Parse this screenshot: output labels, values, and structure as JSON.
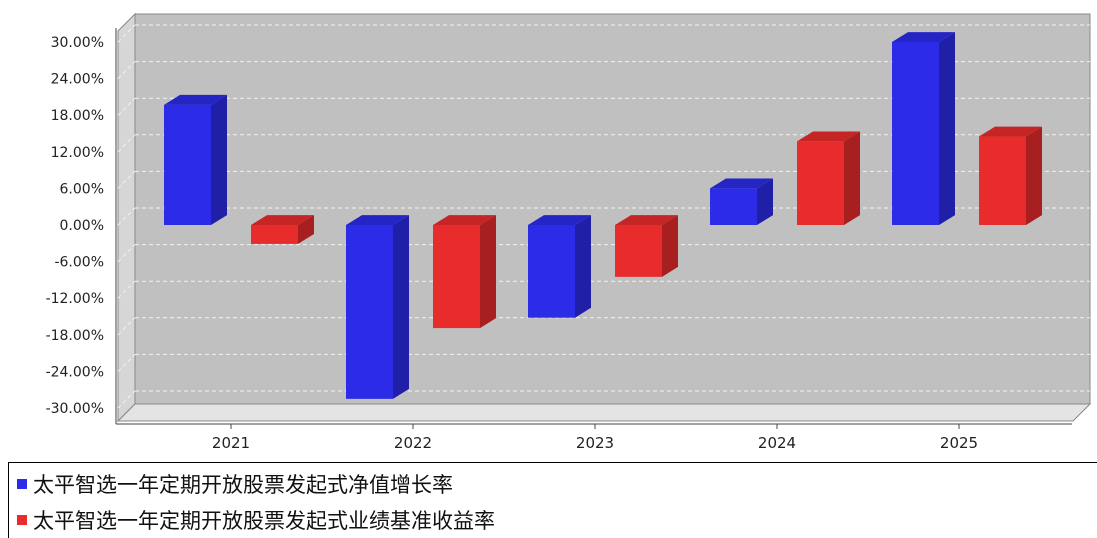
{
  "chart_data": {
    "type": "bar",
    "categories": [
      "2021",
      "2022",
      "2023",
      "2024",
      "2025"
    ],
    "series": [
      {
        "name": "太平智选一年定期开放股票发起式净值增长率",
        "color": "#2b2be8",
        "values": [
          19.7,
          -28.5,
          -15.2,
          6.0,
          30.0
        ]
      },
      {
        "name": "太平智选一年定期开放股票发起式业绩基准收益率",
        "color": "#e82b2b",
        "values": [
          -3.1,
          -16.9,
          -8.5,
          13.7,
          14.5
        ]
      }
    ],
    "y_ticks": [
      "30.00%",
      "24.00%",
      "18.00%",
      "12.00%",
      "6.00%",
      "0.00%",
      "-6.00%",
      "-12.00%",
      "-18.00%",
      "-24.00%",
      "-30.00%"
    ],
    "ylim": [
      -30,
      30
    ],
    "grid": true,
    "legend_position": "bottom",
    "title": "",
    "xlabel": "",
    "ylabel": ""
  }
}
